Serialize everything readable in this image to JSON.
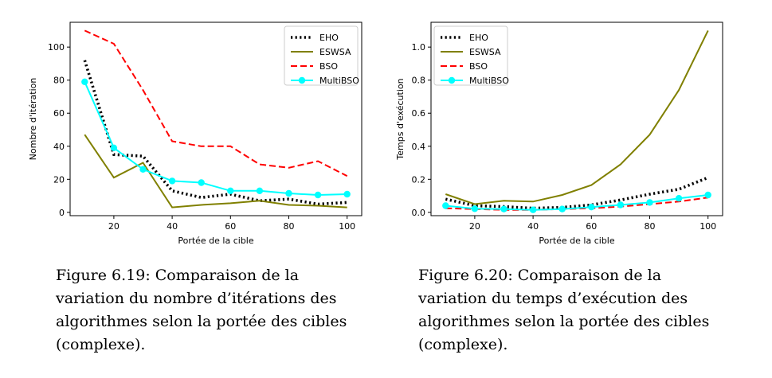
{
  "figures": [
    {
      "caption": "Figure 6.19: Comparaison de la variation du nombre d’itérations des algorithmes selon la portée des cibles (complexe).",
      "chart_data": {
        "type": "line",
        "xlabel": "Portée de la cible",
        "ylabel": "Nombre d'itération",
        "xlim": [
          5,
          105
        ],
        "ylim": [
          -2,
          115
        ],
        "xticks": [
          20,
          40,
          60,
          80,
          100
        ],
        "yticks": [
          0,
          20,
          40,
          60,
          80,
          100
        ],
        "ytick_labels": [
          "0",
          "20",
          "40",
          "60",
          "80",
          "100"
        ],
        "grid": false,
        "legend": "top-right",
        "x": [
          10,
          20,
          30,
          40,
          50,
          60,
          70,
          80,
          90,
          100
        ],
        "series": [
          {
            "name": "EHO",
            "color": "#000000",
            "style": "dotted",
            "values": [
              92,
              35,
              34,
              13,
              9,
              11,
              7,
              8,
              5,
              6
            ]
          },
          {
            "name": "ESWSA",
            "color": "#808000",
            "style": "solid",
            "values": [
              47,
              21,
              30,
              3,
              4.5,
              5.5,
              7,
              4.5,
              4,
              3
            ]
          },
          {
            "name": "BSO",
            "color": "#ff0000",
            "style": "dashed",
            "values": [
              110,
              102,
              74,
              43,
              40,
              40,
              29,
              27,
              31,
              22
            ]
          },
          {
            "name": "MultiBSO",
            "color": "#00ffff",
            "style": "solid-marker",
            "values": [
              79,
              39,
              26,
              19,
              18,
              13,
              13,
              11.5,
              10.5,
              11
            ]
          }
        ]
      }
    },
    {
      "caption": "Figure 6.20: Comparaison de la variation du temps d’exécution des algorithmes selon la portée des cibles (complexe).",
      "chart_data": {
        "type": "line",
        "xlabel": "Portée de la cible",
        "ylabel": "Temps d'exécution",
        "xlim": [
          5,
          105
        ],
        "ylim": [
          -0.02,
          1.15
        ],
        "xticks": [
          20,
          40,
          60,
          80,
          100
        ],
        "yticks": [
          0.0,
          0.2,
          0.4,
          0.6,
          0.8,
          1.0
        ],
        "ytick_labels": [
          "0.0",
          "0.2",
          "0.4",
          "0.6",
          "0.8",
          "1.0"
        ],
        "grid": false,
        "legend": "top-left",
        "x": [
          10,
          20,
          30,
          40,
          50,
          60,
          70,
          80,
          90,
          100
        ],
        "series": [
          {
            "name": "EHO",
            "color": "#000000",
            "style": "dotted",
            "values": [
              0.08,
              0.04,
              0.035,
              0.025,
              0.03,
              0.045,
              0.075,
              0.11,
              0.14,
              0.21
            ]
          },
          {
            "name": "ESWSA",
            "color": "#808000",
            "style": "solid",
            "values": [
              0.11,
              0.05,
              0.07,
              0.065,
              0.105,
              0.165,
              0.29,
              0.47,
              0.74,
              1.1
            ]
          },
          {
            "name": "BSO",
            "color": "#ff0000",
            "style": "dashed",
            "values": [
              0.025,
              0.02,
              0.015,
              0.015,
              0.02,
              0.025,
              0.035,
              0.05,
              0.065,
              0.09
            ]
          },
          {
            "name": "MultiBSO",
            "color": "#00ffff",
            "style": "solid-marker",
            "values": [
              0.04,
              0.022,
              0.02,
              0.015,
              0.02,
              0.032,
              0.045,
              0.06,
              0.085,
              0.105
            ]
          }
        ]
      }
    }
  ]
}
